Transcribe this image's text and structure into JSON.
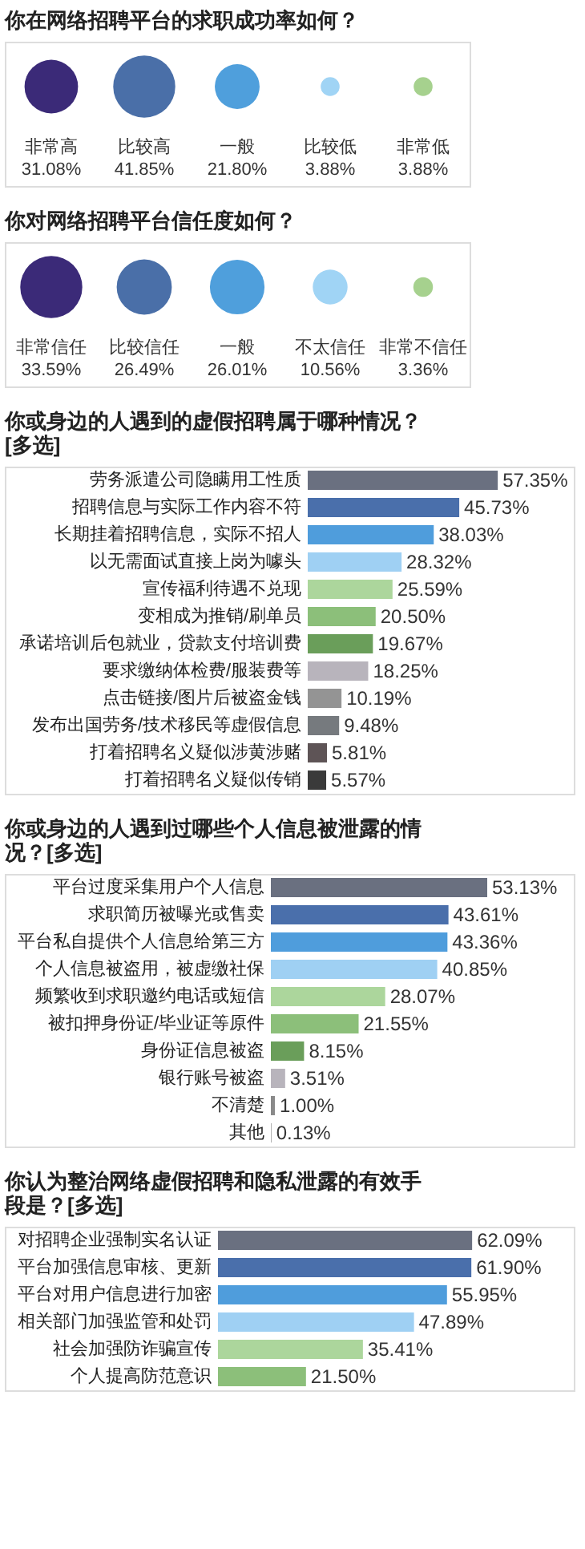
{
  "chart_data": [
    {
      "type": "other",
      "title": "你在网络招聘平台的求职成功率如何？",
      "categories": [
        "非常高",
        "比较高",
        "一般",
        "比较低",
        "非常低"
      ],
      "values": [
        31.08,
        41.85,
        21.8,
        3.88,
        3.88
      ],
      "value_labels": [
        "31.08%",
        "41.85%",
        "21.80%",
        "3.88%",
        "3.88%"
      ],
      "colors": [
        "#3b2a78",
        "#4a6fa8",
        "#4f9fdc",
        "#a0d4f5",
        "#a6d18e"
      ]
    },
    {
      "type": "other",
      "title": "你对网络招聘平台信任度如何？",
      "categories": [
        "非常信任",
        "比较信任",
        "一般",
        "不太信任",
        "非常不信任"
      ],
      "values": [
        33.59,
        26.49,
        26.01,
        10.56,
        3.36
      ],
      "value_labels": [
        "33.59%",
        "26.49%",
        "26.01%",
        "10.56%",
        "3.36%"
      ],
      "colors": [
        "#3b2a78",
        "#4a6fa8",
        "#4f9fdc",
        "#a0d4f5",
        "#a6d18e"
      ]
    },
    {
      "type": "bar",
      "orientation": "horizontal",
      "title": "你或身边的人遇到的虚假招聘属于哪种情况？[多选]",
      "categories": [
        "劳务派遣公司隐瞒用工性质",
        "招聘信息与实际工作内容不符",
        "长期挂着招聘信息，实际不招人",
        "以无需面试直接上岗为噱头",
        "宣传福利待遇不兑现",
        "变相成为推销/刷单员",
        "承诺培训后包就业，贷款支付培训费",
        "要求缴纳体检费/服装费等",
        "点击链接/图片后被盗金钱",
        "发布出国劳务/技术移民等虚假信息",
        "打着招聘名义疑似涉黄涉赌",
        "打着招聘名义疑似传销"
      ],
      "values": [
        57.35,
        45.73,
        38.03,
        28.32,
        25.59,
        20.5,
        19.67,
        18.25,
        10.19,
        9.48,
        5.81,
        5.57
      ],
      "value_labels": [
        "57.35%",
        "45.73%",
        "38.03%",
        "28.32%",
        "25.59%",
        "20.50%",
        "19.67%",
        "18.25%",
        "10.19%",
        "9.48%",
        "5.81%",
        "5.57%"
      ],
      "colors": [
        "#6a7080",
        "#4a6fab",
        "#4f9ddc",
        "#9fd0f3",
        "#acd69c",
        "#8cbf7a",
        "#6a9e5a",
        "#b8b4bc",
        "#949494",
        "#767a7e",
        "#5e5456",
        "#3a3a3a"
      ]
    },
    {
      "type": "bar",
      "orientation": "horizontal",
      "title": "你或身边的人遇到过哪些个人信息被泄露的情况？[多选]",
      "categories": [
        "平台过度采集用户个人信息",
        "求职简历被曝光或售卖",
        "平台私自提供个人信息给第三方",
        "个人信息被盗用，被虚缴社保",
        "频繁收到求职邀约电话或短信",
        "被扣押身份证/毕业证等原件",
        "身份证信息被盗",
        "银行账号被盗",
        "不清楚",
        "其他"
      ],
      "values": [
        53.13,
        43.61,
        43.36,
        40.85,
        28.07,
        21.55,
        8.15,
        3.51,
        1.0,
        0.13
      ],
      "value_labels": [
        "53.13%",
        "43.61%",
        "43.36%",
        "40.85%",
        "28.07%",
        "21.55%",
        "8.15%",
        "3.51%",
        "1.00%",
        "0.13%"
      ],
      "colors": [
        "#6a7080",
        "#4a6fab",
        "#4f9ddc",
        "#9fd0f3",
        "#acd69c",
        "#8cbf7a",
        "#6a9e5a",
        "#b8b4bc",
        "#8a8a8a",
        "#8a8a8a"
      ]
    },
    {
      "type": "bar",
      "orientation": "horizontal",
      "title": "你认为整治网络虚假招聘和隐私泄露的有效手段是？[多选]",
      "categories": [
        "对招聘企业强制实名认证",
        "平台加强信息审核、更新",
        "平台对用户信息进行加密",
        "相关部门加强监管和处罚",
        "社会加强防诈骗宣传",
        "个人提高防范意识"
      ],
      "values": [
        62.09,
        61.9,
        55.95,
        47.89,
        35.41,
        21.5
      ],
      "value_labels": [
        "62.09%",
        "61.90%",
        "55.95%",
        "47.89%",
        "35.41%",
        "21.50%"
      ],
      "colors": [
        "#6a7080",
        "#4a6fab",
        "#4f9ddc",
        "#9fd0f3",
        "#acd69c",
        "#8cbf7a"
      ]
    }
  ]
}
